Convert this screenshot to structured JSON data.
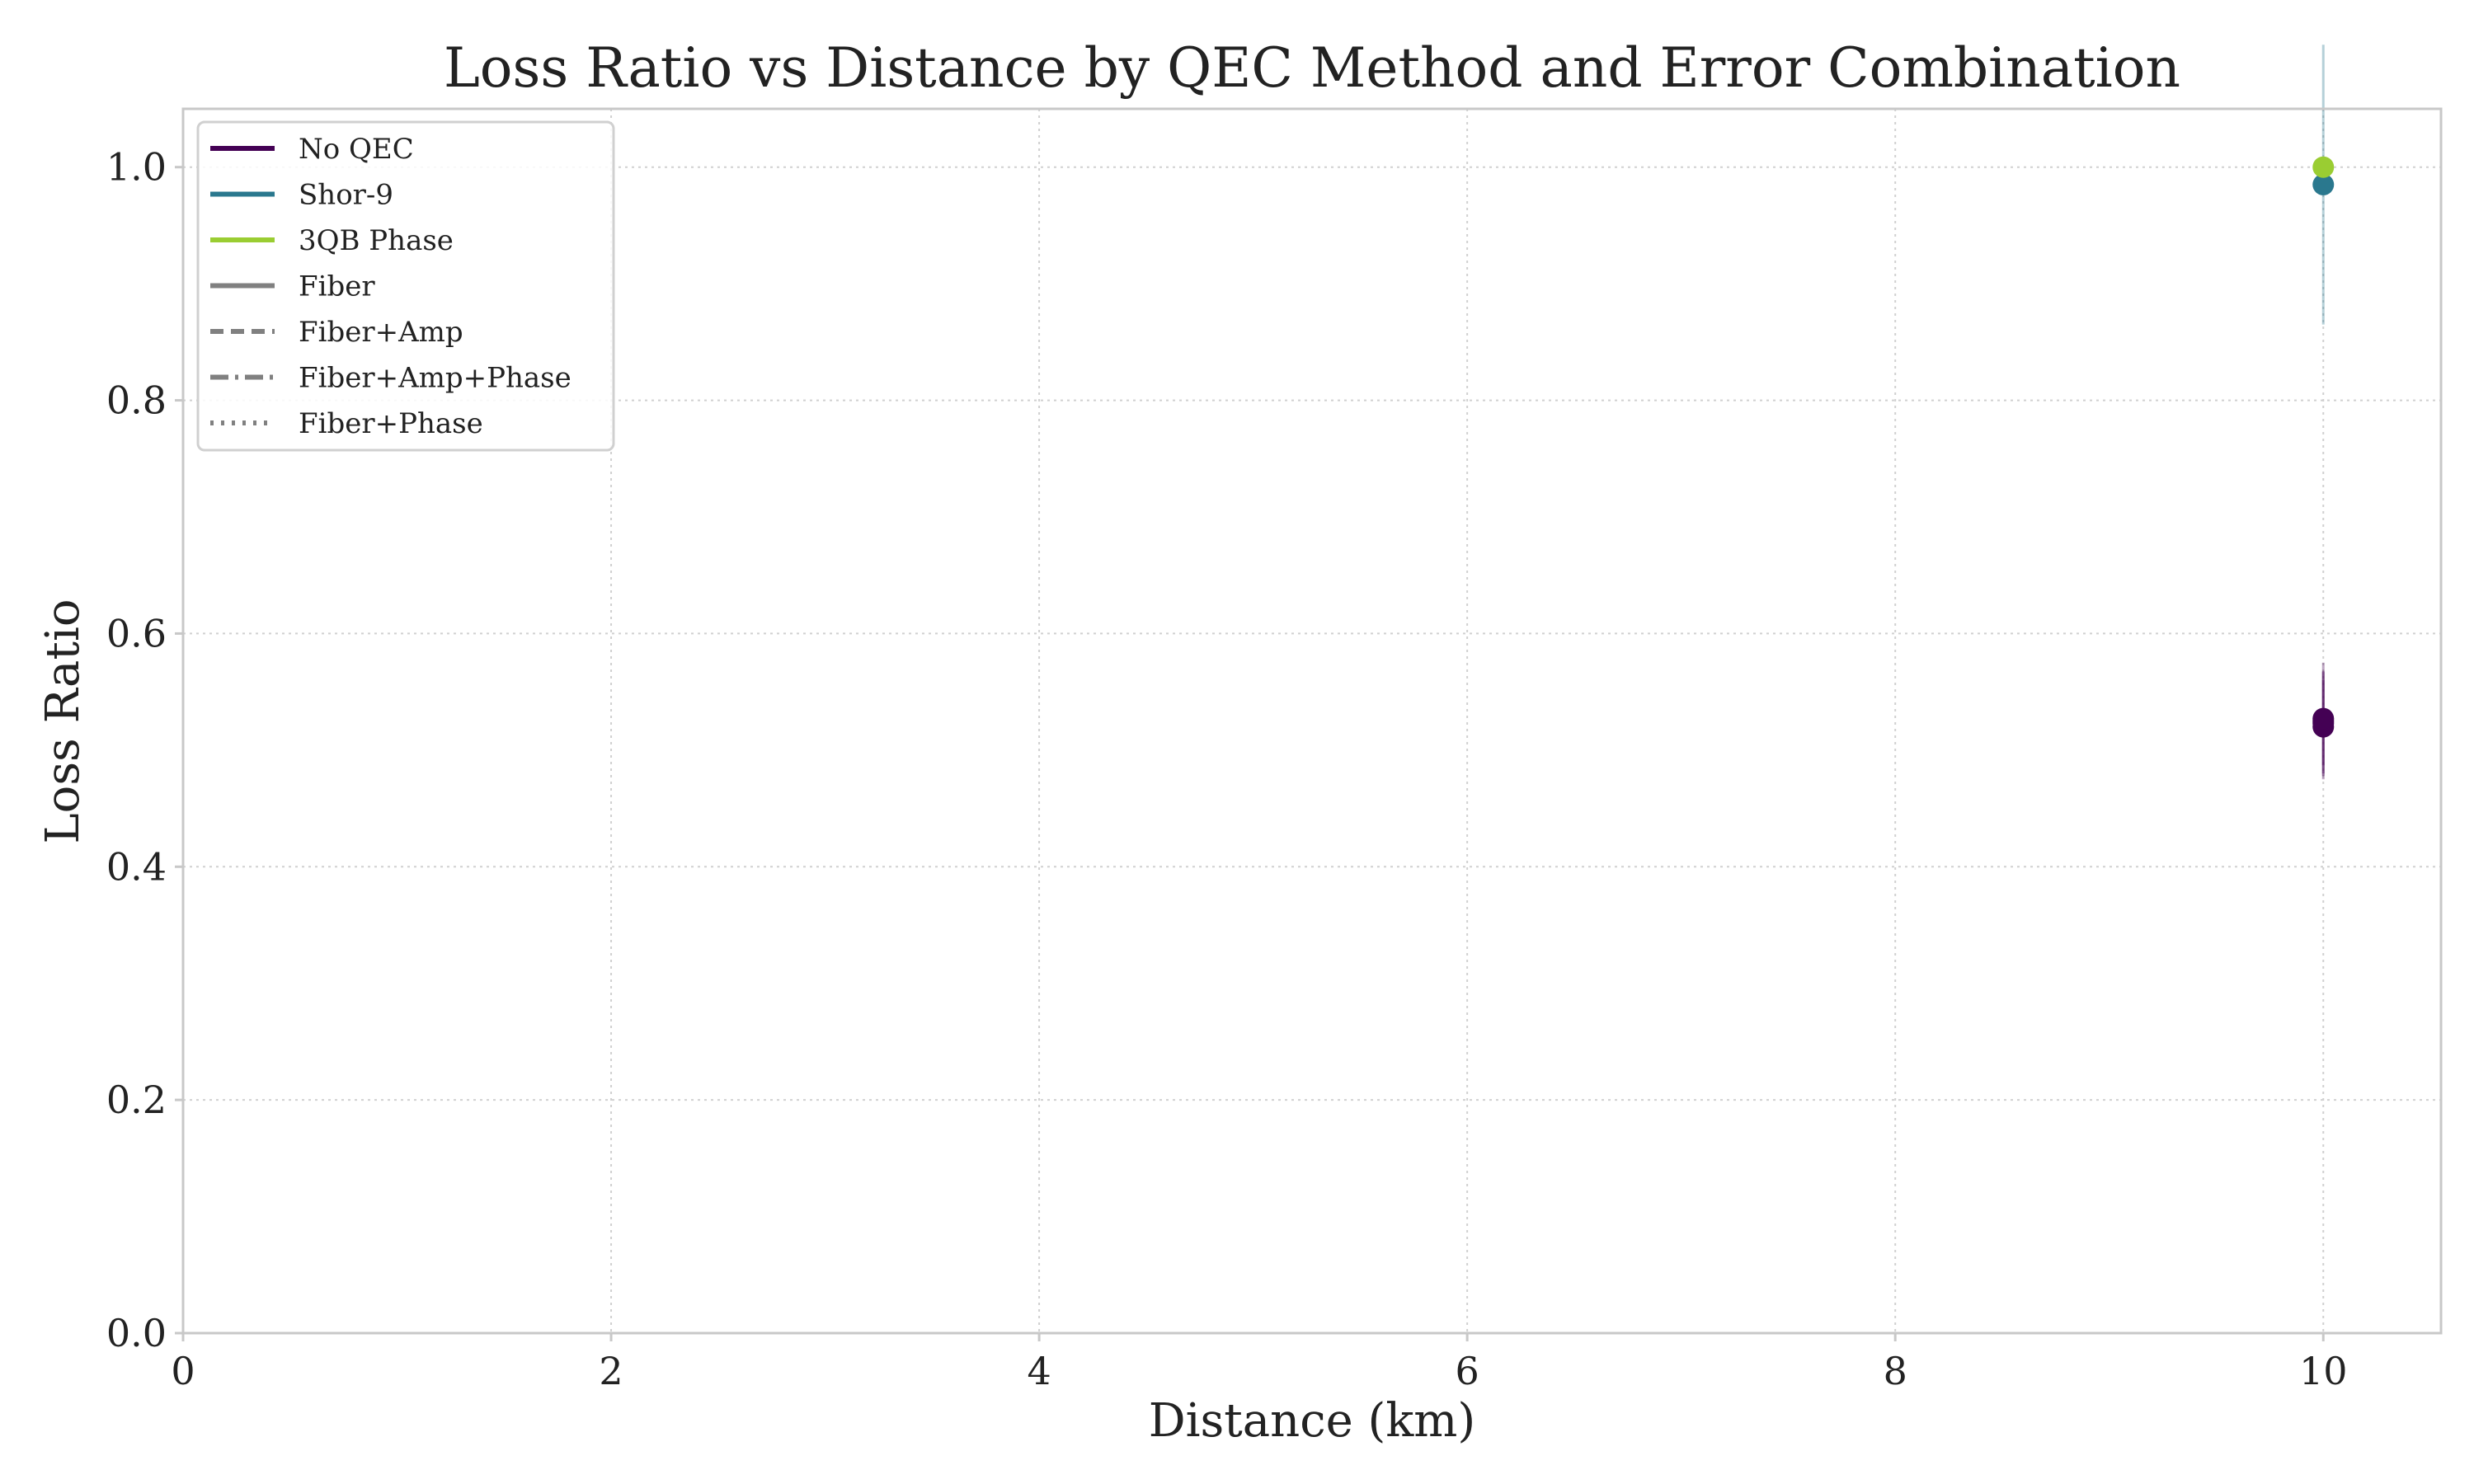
{
  "colors": {
    "no_qec": "#440154",
    "shor9": "#2a788e",
    "qb3_phase": "#9acd32",
    "legend_gray": "#808080",
    "grid": "#d0d0d0",
    "spine": "#c8c8c8",
    "text": "#222222"
  },
  "chart_data": {
    "type": "scatter",
    "title": "Loss Ratio vs Distance by QEC Method and Error Combination",
    "xlabel": "Distance (km)",
    "ylabel": "Loss Ratio",
    "xlim": [
      0,
      10.55
    ],
    "ylim": [
      0,
      1.05
    ],
    "x_ticks": [
      0,
      2,
      4,
      6,
      8,
      10
    ],
    "y_ticks": [
      0.0,
      0.2,
      0.4,
      0.6,
      0.8,
      1.0
    ],
    "x_tick_labels": [
      "0",
      "2",
      "4",
      "6",
      "8",
      "10"
    ],
    "y_tick_labels": [
      "0.0",
      "0.2",
      "0.4",
      "0.6",
      "0.8",
      "1.0"
    ],
    "grid": true,
    "grid_style": "dotted",
    "legend_position": "top-left",
    "legend": [
      {
        "label": "No QEC",
        "color_key": "no_qec",
        "style": "solid"
      },
      {
        "label": "Shor-9",
        "color_key": "shor9",
        "style": "solid"
      },
      {
        "label": "3QB Phase",
        "color_key": "qb3_phase",
        "style": "solid"
      },
      {
        "label": "Fiber",
        "color_key": "legend_gray",
        "style": "solid"
      },
      {
        "label": "Fiber+Amp",
        "color_key": "legend_gray",
        "style": "dashed"
      },
      {
        "label": "Fiber+Amp+Phase",
        "color_key": "legend_gray",
        "style": "dashdot"
      },
      {
        "label": "Fiber+Phase",
        "color_key": "legend_gray",
        "style": "dotted"
      }
    ],
    "series": [
      {
        "method": "No QEC",
        "error_combination": "Fiber",
        "color_key": "no_qec",
        "x": [
          10
        ],
        "y": [
          0.52
        ],
        "err": [
          0.04
        ]
      },
      {
        "method": "No QEC",
        "error_combination": "Fiber+Amp",
        "color_key": "no_qec",
        "x": [
          10
        ],
        "y": [
          0.525
        ],
        "err": [
          0.05
        ]
      },
      {
        "method": "No QEC",
        "error_combination": "Fiber+Amp+Phase",
        "color_key": "no_qec",
        "x": [
          10
        ],
        "y": [
          0.523
        ],
        "err": [
          0.045
        ]
      },
      {
        "method": "No QEC",
        "error_combination": "Fiber+Phase",
        "color_key": "no_qec",
        "x": [
          10
        ],
        "y": [
          0.527
        ],
        "err": [
          0.04
        ]
      },
      {
        "method": "Shor-9",
        "error_combination": "Fiber",
        "color_key": "shor9",
        "x": [
          10
        ],
        "y": [
          0.985
        ],
        "err": [
          0.12
        ]
      },
      {
        "method": "3QB Phase",
        "error_combination": "Fiber",
        "color_key": "qb3_phase",
        "x": [
          10
        ],
        "y": [
          1.0
        ],
        "err": [
          0.0
        ]
      }
    ]
  }
}
